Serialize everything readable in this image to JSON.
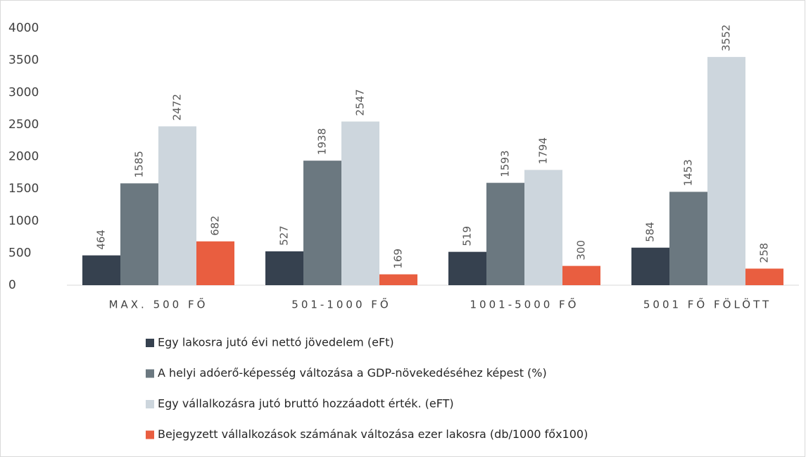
{
  "chart_data": {
    "type": "bar",
    "categories": [
      "MAX. 500 FŐ",
      "501-1000 FŐ",
      "1001-5000 FŐ",
      "5001 FŐ FÖLÖTT"
    ],
    "series": [
      {
        "name": "Egy lakosra jutó évi nettó jövedelem (eFt)",
        "color": "#36414f",
        "values": [
          464,
          527,
          519,
          584
        ]
      },
      {
        "name": "A helyi adóerő-képesség változása a GDP-növekedéséhez képest (%)",
        "color": "#6b7880",
        "values": [
          1585,
          1938,
          1593,
          1453
        ]
      },
      {
        "name": "Egy vállalkozásra jutó bruttó hozzáadott érték. (eFT)",
        "color": "#cdd6dd",
        "values": [
          2472,
          2547,
          1794,
          3552
        ]
      },
      {
        "name": "Bejegyzett vállalkozások számának változása ezer lakosra (db/1000 főx100)",
        "color": "#e95e40",
        "values": [
          682,
          169,
          300,
          258
        ]
      }
    ],
    "ylim": [
      0,
      4000
    ],
    "yticks": [
      0,
      500,
      1000,
      1500,
      2000,
      2500,
      3000,
      3500,
      4000
    ],
    "legend": "bottom"
  }
}
